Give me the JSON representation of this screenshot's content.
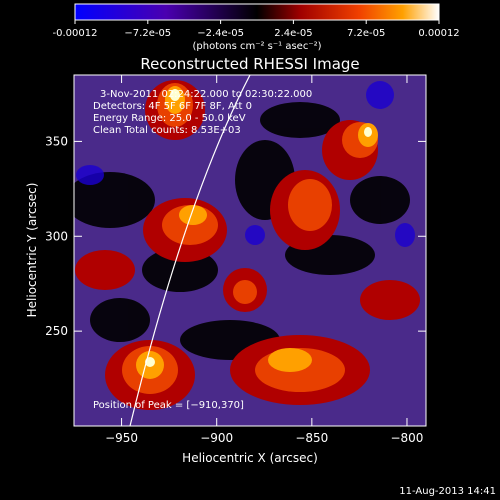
{
  "colorbar": {
    "ticks": [
      "-0.00012",
      "−7.2e-05",
      "−2.4e-05",
      "2.4e-05",
      "7.2e-05",
      "0.00012"
    ],
    "unit_label": "(photons cm⁻² s⁻¹ asec⁻²)"
  },
  "chart_data": {
    "type": "heatmap",
    "title": "Reconstructed RHESSI Image",
    "xlabel": "Heliocentric X (arcsec)",
    "ylabel": "Heliocentric Y (arcsec)",
    "xlim": [
      -975,
      -790
    ],
    "ylim": [
      200,
      385
    ],
    "xticks": [
      -950,
      -900,
      -850,
      -800
    ],
    "yticks": [
      250,
      300,
      350
    ],
    "xtick_labels": [
      "−950",
      "−900",
      "−850",
      "−800"
    ],
    "ytick_labels": [
      "250",
      "300",
      "350"
    ],
    "value_range": [
      -0.00012,
      0.00012
    ],
    "annotations": [
      "3-Nov-2011 02:24:22.000 to 02:30:22.000",
      "Detectors: 4F 5F 6F 7F 8F, Att 0",
      "Energy Range: 25.0 - 50.0 keV",
      "Clean     Total counts: 8.53E+03"
    ],
    "peak_label": "Position of Peak = [−910,370]",
    "peak": [
      -910,
      370
    ],
    "colormap": [
      "#0000ff",
      "#3a00a0",
      "#4a2a8a",
      "#000000",
      "#8a0000",
      "#e84000",
      "#ffa000",
      "#ffffd0"
    ]
  },
  "footer": {
    "date": "11-Aug-2013 14:41"
  }
}
